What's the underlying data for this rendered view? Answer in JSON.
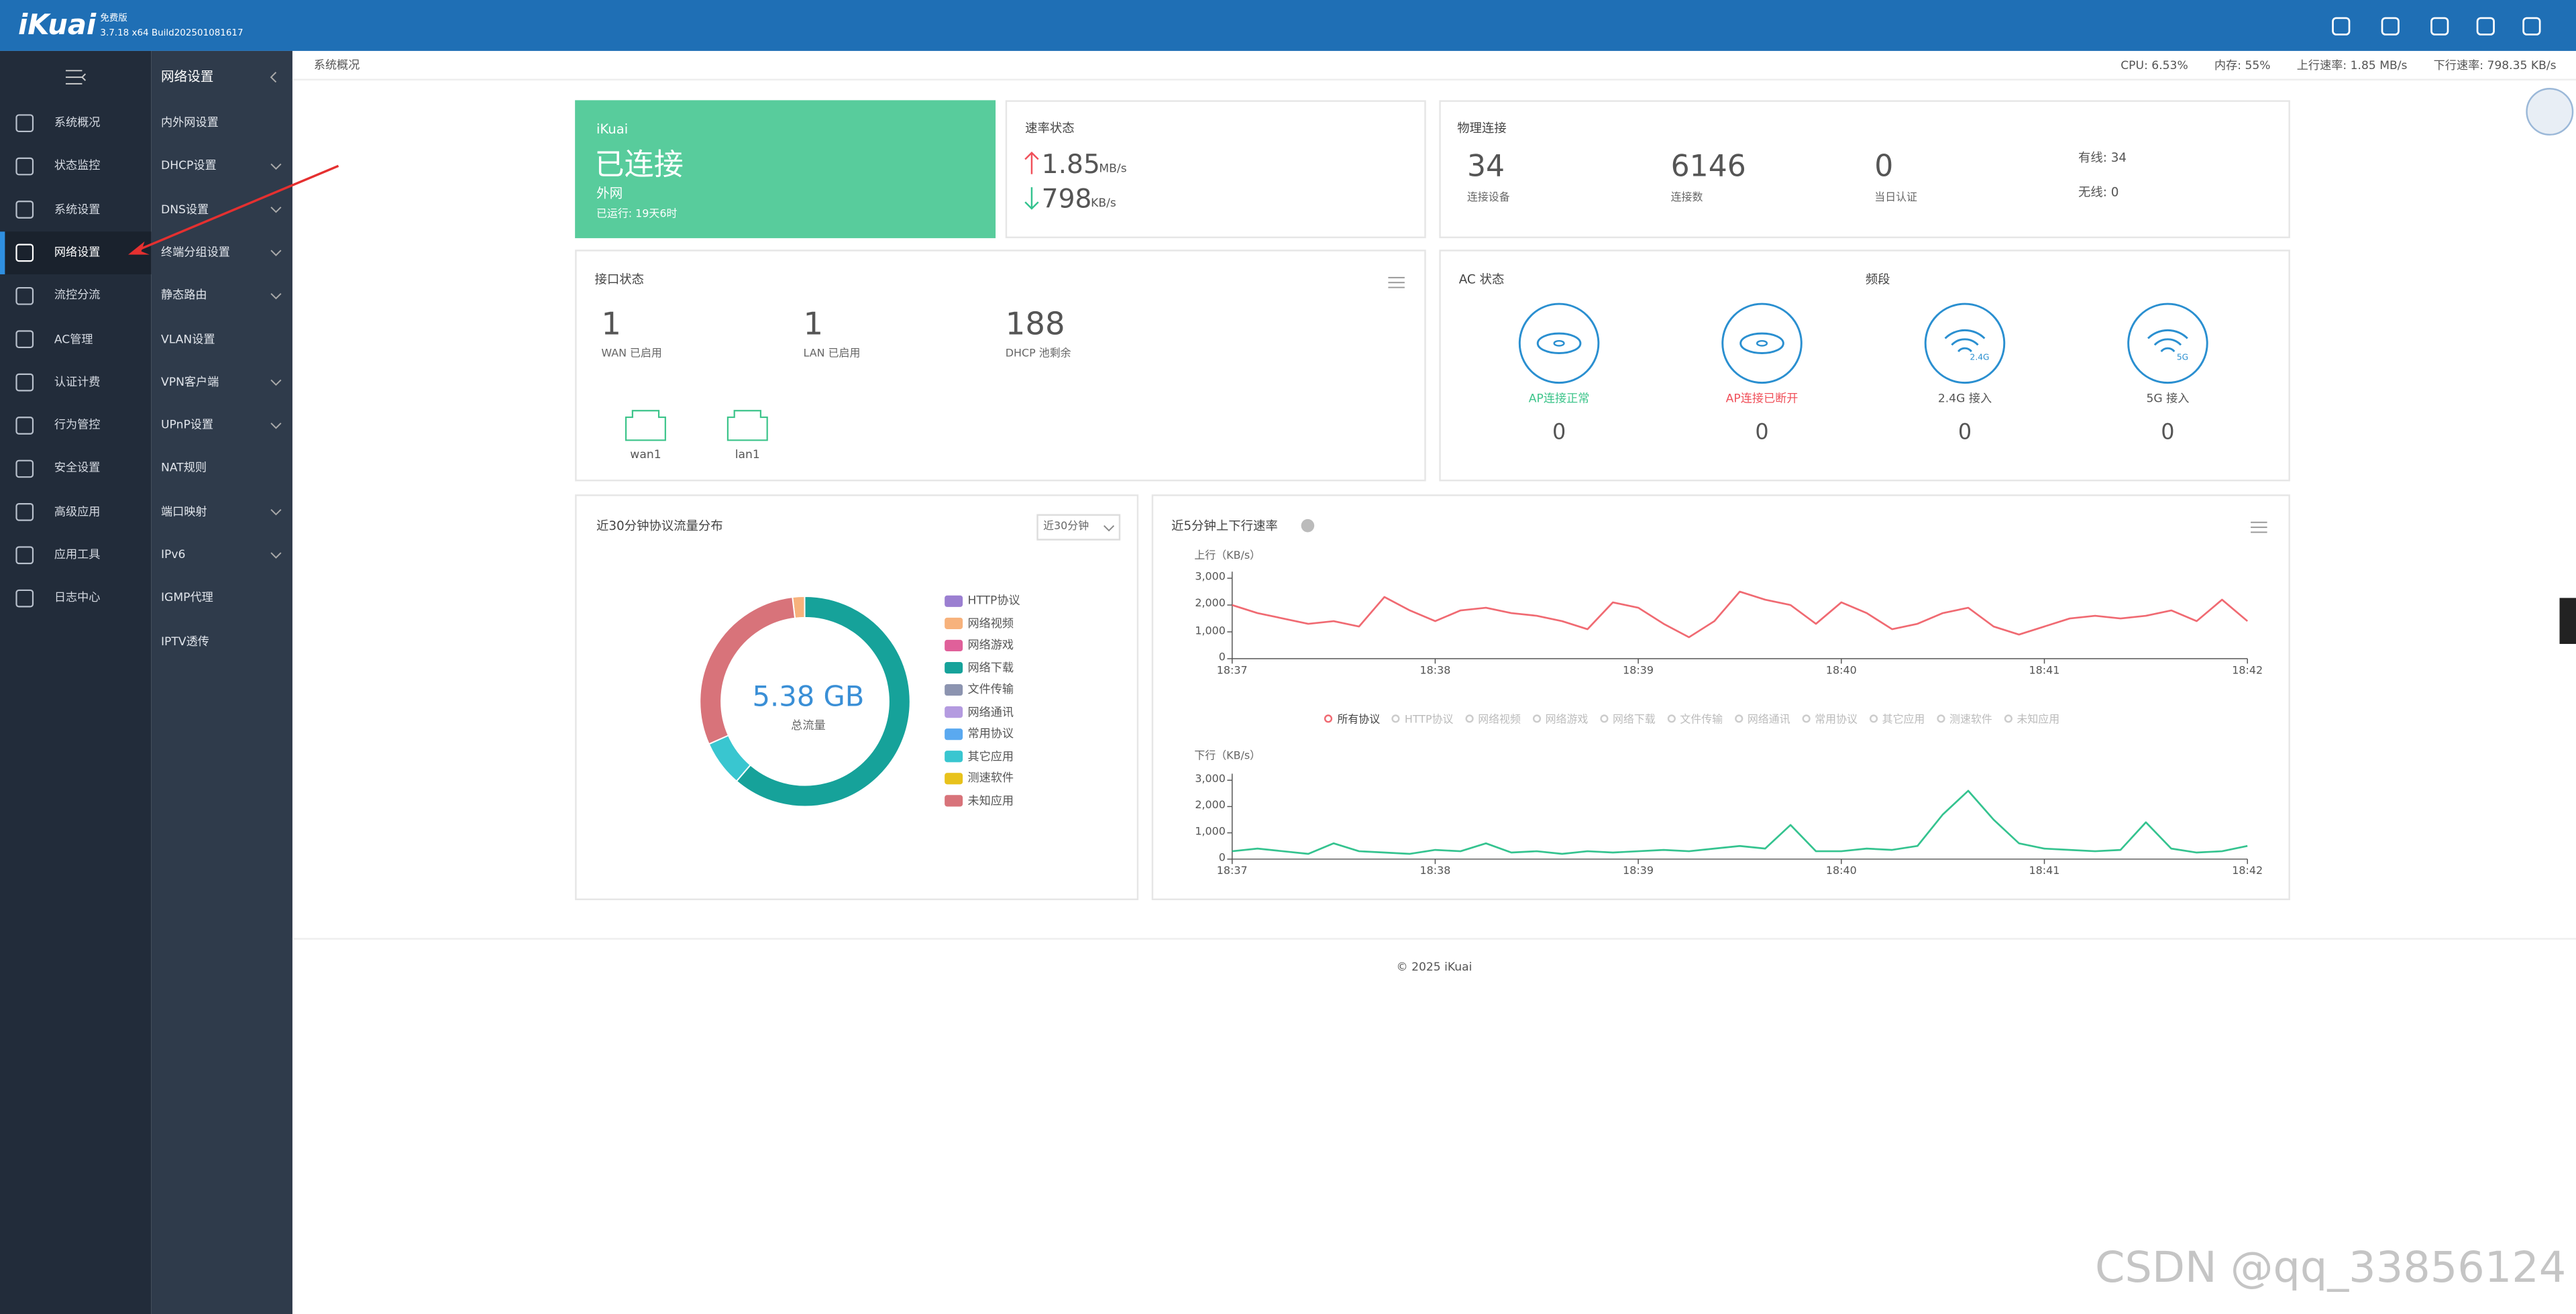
{
  "header": {
    "logo": "iKuai",
    "edition": "免费版",
    "version": "3.7.18 x64 Build202501081617"
  },
  "topbar": {
    "breadcrumb": "系统概况",
    "stats": [
      "CPU: 6.53%",
      "内存: 55%",
      "上行速率: 1.85 MB/s",
      "下行速率: 798.35 KB/s"
    ]
  },
  "menu": {
    "items": [
      "系统概况",
      "状态监控",
      "系统设置",
      "网络设置",
      "流控分流",
      "AC管理",
      "认证计费",
      "行为管控",
      "安全设置",
      "高级应用",
      "应用工具",
      "日志中心"
    ],
    "selected": 3
  },
  "submenu": {
    "title": "网络设置",
    "items": [
      {
        "label": "内外网设置",
        "expandable": false
      },
      {
        "label": "DHCP设置",
        "expandable": true
      },
      {
        "label": "DNS设置",
        "expandable": true
      },
      {
        "label": "终端分组设置",
        "expandable": true
      },
      {
        "label": "静态路由",
        "expandable": true
      },
      {
        "label": "VLAN设置",
        "expandable": false
      },
      {
        "label": "VPN客户端",
        "expandable": true
      },
      {
        "label": "UPnP设置",
        "expandable": true
      },
      {
        "label": "NAT规则",
        "expandable": false
      },
      {
        "label": "端口映射",
        "expandable": true
      },
      {
        "label": "IPv6",
        "expandable": true
      },
      {
        "label": "IGMP代理",
        "expandable": false
      },
      {
        "label": "IPTV透传",
        "expandable": false
      }
    ]
  },
  "status_card": {
    "brand": "iKuai",
    "state": "已连接",
    "network": "外网",
    "uptime": "已运行: 19天6时"
  },
  "speed_card": {
    "title": "速率状态",
    "upload": "1.85",
    "upload_unit": "MB/s",
    "download": "798",
    "download_unit": "KB/s"
  },
  "physical_card": {
    "title": "物理连接",
    "stats": [
      {
        "value": "34",
        "label": "连接设备"
      },
      {
        "value": "6146",
        "label": "连接数"
      },
      {
        "value": "0",
        "label": "当日认证"
      }
    ],
    "wired": "有线: 34",
    "wireless": "无线: 0"
  },
  "interface_card": {
    "title": "接口状态",
    "stats": [
      {
        "value": "1",
        "label": "WAN 已启用"
      },
      {
        "value": "1",
        "label": "LAN 已启用"
      },
      {
        "value": "188",
        "label": "DHCP 池剩余"
      }
    ],
    "ports": [
      "wan1",
      "lan1"
    ]
  },
  "ac_card": {
    "title": "AC 状态",
    "band_title": "频段",
    "items": [
      {
        "label": "AP连接正常",
        "value": "0",
        "color": "#3cc48a"
      },
      {
        "label": "AP连接已断开",
        "value": "0",
        "color": "#f0505a"
      },
      {
        "label": "2.4G 接入",
        "value": "0",
        "color": "#555555",
        "badge": "2.4G"
      },
      {
        "label": "5G 接入",
        "value": "0",
        "color": "#555555",
        "badge": "5G"
      }
    ]
  },
  "protocol_chart": {
    "type": "donut",
    "title": "近30分钟协议流量分布",
    "range": "近30分钟",
    "total": "5.38 GB",
    "total_label": "总流量",
    "series": [
      {
        "name": "HTTP协议",
        "color": "#9b7fd1",
        "value": 0
      },
      {
        "name": "网络视频",
        "color": "#f7b27c",
        "value": 0.1
      },
      {
        "name": "网络游戏",
        "color": "#e0609a",
        "value": 0
      },
      {
        "name": "网络下载",
        "color": "#16a29a",
        "value": 3.3
      },
      {
        "name": "文件传输",
        "color": "#8c94b0",
        "value": 0
      },
      {
        "name": "网络通讯",
        "color": "#b49be0",
        "value": 0
      },
      {
        "name": "常用协议",
        "color": "#5aa9f0",
        "value": 0
      },
      {
        "name": "其它应用",
        "color": "#39c6d0",
        "value": 0.38
      },
      {
        "name": "测速软件",
        "color": "#e8c21c",
        "value": 0
      },
      {
        "name": "未知应用",
        "color": "#d8737a",
        "value": 1.6
      }
    ]
  },
  "rate_chart": {
    "type": "line",
    "title": "近5分钟上下行速率",
    "categories": [
      "18:37",
      null,
      null,
      null,
      null,
      null,
      null,
      null,
      "18:38",
      null,
      null,
      null,
      null,
      null,
      null,
      null,
      "18:39",
      null,
      null,
      null,
      null,
      null,
      null,
      null,
      "18:40",
      null,
      null,
      null,
      null,
      null,
      null,
      null,
      "18:41",
      null,
      null,
      null,
      null,
      null,
      null,
      null,
      "18:42"
    ],
    "ylim": [
      0,
      3000
    ],
    "yticks": [
      0,
      {
        "value": 1000,
        "label": "1,000"
      },
      {
        "value": 2000,
        "label": "2,000"
      },
      {
        "value": 3000,
        "label": "3,000"
      }
    ],
    "upload": {
      "name": "上行（KB/s）",
      "color": "#f06a72",
      "values": [
        2000,
        1700,
        1500,
        1300,
        1400,
        1200,
        2300,
        1800,
        1400,
        1800,
        1900,
        1700,
        1600,
        1400,
        1100,
        2100,
        1900,
        1300,
        800,
        1400,
        2500,
        2200,
        2000,
        1300,
        2100,
        1700,
        1100,
        1300,
        1700,
        1900,
        1200,
        900,
        1200,
        1500,
        1600,
        1500,
        1600,
        1800,
        1400,
        2200,
        1400
      ]
    },
    "download": {
      "name": "下行（KB/s）",
      "color": "#34c38f",
      "values": [
        300,
        400,
        300,
        200,
        600,
        300,
        250,
        200,
        350,
        300,
        600,
        250,
        300,
        200,
        300,
        250,
        300,
        350,
        300,
        400,
        500,
        400,
        1300,
        300,
        300,
        400,
        350,
        500,
        1700,
        2600,
        1500,
        600,
        400,
        350,
        300,
        350,
        1400,
        400,
        250,
        300,
        500
      ]
    },
    "legend": [
      {
        "name": "所有协议",
        "active": true
      },
      {
        "name": "HTTP协议",
        "active": false
      },
      {
        "name": "网络视频",
        "active": false
      },
      {
        "name": "网络游戏",
        "active": false
      },
      {
        "name": "网络下载",
        "active": false
      },
      {
        "name": "文件传输",
        "active": false
      },
      {
        "name": "网络通讯",
        "active": false
      },
      {
        "name": "常用协议",
        "active": false
      },
      {
        "name": "其它应用",
        "active": false
      },
      {
        "name": "测速软件",
        "active": false
      },
      {
        "name": "未知应用",
        "active": false
      }
    ]
  },
  "footer": "© 2025 iKuai",
  "watermark": "CSDN @qq_33856124"
}
